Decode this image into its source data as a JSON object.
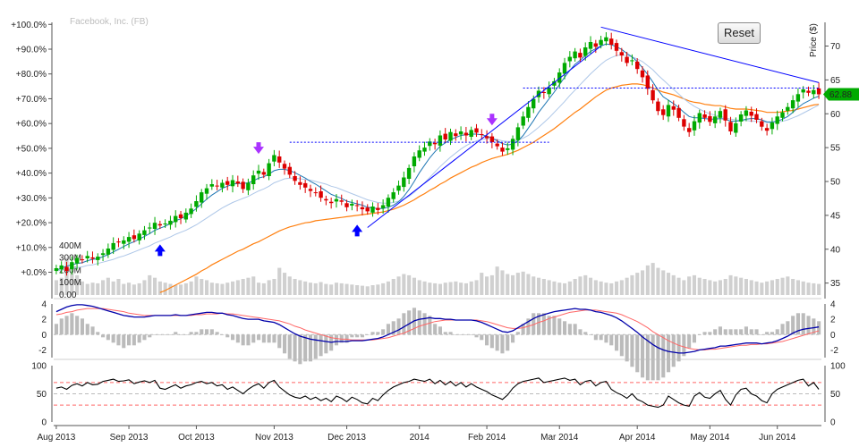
{
  "chart_title": "Facebook, Inc. (FB)",
  "reset_label": "Reset",
  "price_axis_label": "Price ($)",
  "price_tag": "62.88",
  "colors": {
    "up": "#00aa00",
    "down": "#dd0000",
    "sma_fast": "#1f77b4",
    "sma_slow": "#aec7e8",
    "ema_long": "#ff7f0e",
    "macd": "#0000aa",
    "signal": "#ff6666",
    "hist": "#bbbbbb",
    "trend": "#0000ff",
    "arrow_buy": "#0000ff",
    "arrow_sell": "#aa33ff",
    "rsi": "#000000",
    "rsi_band": "#ff6666",
    "price_tag_bg": "#00aa00"
  },
  "chart_data": [
    {
      "type": "candlestick",
      "title": "Facebook, Inc. (FB)",
      "ylabel": "Price ($)",
      "x_ticks": [
        "Aug 2013",
        "Sep 2013",
        "Oct 2013",
        "Nov 2013",
        "Dec 2013",
        "2014",
        "Feb 2014",
        "Mar 2014",
        "Apr 2014",
        "May 2014",
        "Jun 2014"
      ],
      "y_ticks_right": [
        "35",
        "40",
        "45",
        "50",
        "55",
        "60",
        "65",
        "70"
      ],
      "y_ticks_left": [
        "+0.0%",
        "+10.0%",
        "+20.0%",
        "+30.0%",
        "+40.0%",
        "+50.0%",
        "+60.0%",
        "+70.0%",
        "+80.0%",
        "+90.0%",
        "+100.0%"
      ],
      "volume_ticks": [
        "0.00",
        "100M",
        "200M",
        "300M",
        "400M"
      ],
      "ylim": [
        33.5,
        73.5
      ],
      "pct_base": 36.6,
      "last_price": 62.88,
      "closes": [
        37.2,
        37.6,
        36.8,
        38.1,
        38.7,
        38.4,
        39.0,
        38.6,
        38.9,
        39.4,
        40.1,
        40.9,
        41.0,
        41.3,
        41.8,
        41.5,
        42.3,
        42.8,
        43.2,
        43.9,
        43.5,
        43.8,
        44.2,
        44.9,
        44.6,
        45.4,
        46.0,
        47.1,
        48.4,
        49.0,
        49.6,
        49.3,
        49.8,
        49.5,
        50.2,
        49.7,
        48.9,
        49.8,
        50.9,
        51.6,
        51.0,
        52.7,
        53.9,
        52.8,
        51.9,
        51.0,
        50.1,
        49.5,
        49.1,
        48.6,
        48.3,
        47.6,
        47.2,
        46.8,
        47.4,
        47.0,
        46.2,
        46.7,
        46.4,
        45.9,
        45.6,
        46.3,
        45.8,
        46.5,
        47.6,
        48.4,
        49.4,
        50.6,
        52.0,
        53.7,
        54.6,
        55.0,
        55.9,
        55.5,
        56.8,
        56.2,
        57.3,
        56.7,
        57.4,
        56.8,
        57.6,
        57.2,
        56.9,
        56.4,
        55.8,
        55.2,
        54.4,
        54.9,
        56.3,
        58.0,
        59.6,
        61.0,
        62.2,
        63.4,
        63.1,
        63.9,
        64.8,
        66.1,
        67.5,
        68.4,
        69.2,
        68.3,
        69.8,
        70.6,
        69.9,
        70.9,
        71.3,
        70.2,
        69.3,
        68.6,
        67.5,
        67.9,
        66.6,
        65.4,
        63.7,
        62.0,
        60.4,
        59.8,
        61.3,
        60.6,
        59.4,
        58.1,
        57.3,
        58.9,
        60.1,
        59.4,
        58.8,
        59.6,
        60.4,
        59.0,
        57.4,
        58.6,
        59.9,
        60.5,
        59.7,
        59.1,
        58.1,
        57.5,
        58.7,
        59.6,
        60.2,
        61.0,
        62.0,
        62.9,
        63.6,
        63.1,
        63.5,
        62.88
      ],
      "volume": [
        120,
        140,
        300,
        180,
        160,
        110,
        90,
        100,
        95,
        120,
        140,
        110,
        130,
        90,
        100,
        85,
        95,
        120,
        160,
        140,
        110,
        100,
        90,
        80,
        85,
        95,
        110,
        150,
        130,
        120,
        100,
        95,
        90,
        100,
        110,
        120,
        130,
        140,
        150,
        100,
        95,
        120,
        130,
        220,
        180,
        150,
        130,
        120,
        110,
        100,
        95,
        105,
        90,
        85,
        100,
        95,
        90,
        85,
        80,
        75,
        70,
        80,
        85,
        95,
        110,
        130,
        150,
        170,
        160,
        140,
        120,
        110,
        100,
        95,
        90,
        100,
        105,
        110,
        100,
        95,
        110,
        120,
        180,
        150,
        160,
        230,
        200,
        170,
        160,
        180,
        190,
        170,
        150,
        140,
        130,
        120,
        110,
        100,
        95,
        110,
        130,
        150,
        160,
        140,
        120,
        110,
        100,
        95,
        110,
        120,
        140,
        160,
        180,
        200,
        240,
        260,
        220,
        200,
        180,
        160,
        140,
        120,
        150,
        160,
        140,
        130,
        120,
        110,
        120,
        130,
        160,
        150,
        140,
        130,
        120,
        110,
        100,
        110,
        120,
        130,
        140,
        150,
        130,
        120,
        110,
        100,
        95,
        90
      ],
      "sma_fast": [
        36.9,
        37.2,
        37.5,
        37.7,
        37.9,
        38.0,
        38.3,
        38.5,
        38.6,
        38.9,
        39.2,
        39.6,
        40.0,
        40.4,
        40.8,
        41.1,
        41.5,
        41.9,
        42.3,
        42.8,
        43.1,
        43.4,
        43.8,
        44.2,
        44.5,
        44.9,
        45.4,
        46.0,
        46.7,
        47.4,
        48.0,
        48.5,
        49.0,
        49.3,
        49.6,
        49.7,
        49.7,
        49.8,
        50.1,
        50.5,
        50.7,
        51.1,
        51.6,
        51.8,
        51.8,
        51.6,
        51.3,
        50.9,
        50.5,
        50.0,
        49.6,
        49.1,
        48.6,
        48.1,
        47.8,
        47.5,
        47.1,
        46.9,
        46.7,
        46.5,
        46.2,
        46.1,
        46.0,
        46.0,
        46.2,
        46.5,
        47.0,
        47.8,
        48.8,
        50.0,
        51.3,
        52.4,
        53.5,
        54.4,
        55.2,
        55.7,
        56.2,
        56.5,
        56.8,
        56.9,
        57.0,
        57.0,
        56.9,
        56.7,
        56.4,
        56.0,
        55.6,
        55.4,
        55.5,
        56.0,
        56.8,
        57.9,
        59.0,
        60.2,
        61.2,
        62.2,
        63.2,
        64.3,
        65.4,
        66.4,
        67.3,
        67.9,
        68.6,
        69.2,
        69.6,
        70.0,
        70.3,
        70.2,
        69.9,
        69.5,
        68.9,
        68.4,
        67.7,
        66.8,
        65.8,
        64.7,
        63.5,
        62.5,
        62.0,
        61.5,
        60.9,
        60.2,
        59.6,
        59.4,
        59.4,
        59.3,
        59.2,
        59.2,
        59.3,
        59.2,
        58.9,
        58.9,
        59.0,
        59.2,
        59.3,
        59.3,
        59.1,
        58.8,
        58.8,
        58.9,
        59.2,
        59.6,
        60.2,
        60.9,
        61.5,
        61.9,
        62.3,
        62.6
      ],
      "sma_slow": [
        36.8,
        36.9,
        37.0,
        37.2,
        37.3,
        37.4,
        37.6,
        37.7,
        37.9,
        38.1,
        38.3,
        38.5,
        38.8,
        39.0,
        39.3,
        39.6,
        39.9,
        40.2,
        40.5,
        40.9,
        41.2,
        41.5,
        41.8,
        42.2,
        42.5,
        42.8,
        43.2,
        43.6,
        44.1,
        44.6,
        45.1,
        45.6,
        46.1,
        46.5,
        46.9,
        47.2,
        47.5,
        47.8,
        48.2,
        48.6,
        48.9,
        49.3,
        49.8,
        50.1,
        50.4,
        50.5,
        50.5,
        50.4,
        50.3,
        50.2,
        50.0,
        49.8,
        49.6,
        49.3,
        49.1,
        48.8,
        48.5,
        48.2,
        47.9,
        47.6,
        47.3,
        47.1,
        46.9,
        46.8,
        46.8,
        46.9,
        47.1,
        47.4,
        47.8,
        48.4,
        49.1,
        49.8,
        50.6,
        51.4,
        52.2,
        52.9,
        53.6,
        54.2,
        54.8,
        55.3,
        55.7,
        56.0,
        56.2,
        56.3,
        56.3,
        56.2,
        56.0,
        55.9,
        55.9,
        56.1,
        56.4,
        56.8,
        57.4,
        58.0,
        58.7,
        59.4,
        60.2,
        61.0,
        61.8,
        62.7,
        63.5,
        64.3,
        65.1,
        65.9,
        66.6,
        67.3,
        67.9,
        68.3,
        68.6,
        68.7,
        68.6,
        68.4,
        68.1,
        67.7,
        67.1,
        66.5,
        65.7,
        65.0,
        64.3,
        63.6,
        62.9,
        62.2,
        61.6,
        61.1,
        60.7,
        60.3,
        60.0,
        59.8,
        59.6,
        59.4,
        59.2,
        59.1,
        59.0,
        59.0,
        58.9,
        58.9,
        58.8,
        58.7,
        58.7,
        58.8,
        58.9,
        59.1,
        59.4,
        59.7,
        60.1,
        60.5,
        60.9,
        61.3
      ],
      "ema_long": [
        null,
        null,
        null,
        null,
        null,
        null,
        null,
        null,
        null,
        null,
        null,
        null,
        null,
        null,
        null,
        null,
        null,
        null,
        null,
        null,
        33.6,
        33.9,
        34.3,
        34.7,
        35.1,
        35.5,
        35.9,
        36.3,
        36.8,
        37.2,
        37.7,
        38.1,
        38.5,
        38.9,
        39.3,
        39.7,
        40.0,
        40.4,
        40.8,
        41.1,
        41.5,
        41.9,
        42.3,
        42.7,
        43.0,
        43.3,
        43.5,
        43.7,
        43.9,
        44.0,
        44.2,
        44.3,
        44.4,
        44.5,
        44.6,
        44.7,
        44.8,
        44.9,
        45.0,
        45.1,
        45.2,
        45.3,
        45.4,
        45.5,
        45.7,
        45.9,
        46.2,
        46.5,
        46.9,
        47.3,
        47.8,
        48.2,
        48.7,
        49.1,
        49.6,
        50.0,
        50.5,
        50.9,
        51.3,
        51.7,
        52.1,
        52.4,
        52.8,
        53.1,
        53.4,
        53.6,
        53.8,
        54.0,
        54.3,
        54.6,
        55.0,
        55.4,
        55.8,
        56.3,
        56.8,
        57.3,
        57.8,
        58.4,
        59.0,
        59.6,
        60.2,
        60.7,
        61.3,
        61.9,
        62.5,
        63.0,
        63.5,
        63.8,
        64.0,
        64.2,
        64.3,
        64.4,
        64.4,
        64.3,
        64.1,
        63.8,
        63.5,
        63.2,
        63.0,
        62.8,
        62.5,
        62.2,
        61.9,
        61.7,
        61.6,
        61.4,
        61.3,
        61.2,
        61.2,
        61.0,
        60.8,
        60.7,
        60.7,
        60.7,
        60.6,
        60.5,
        60.4,
        60.2,
        60.2,
        60.2,
        60.3,
        60.4,
        60.5,
        60.7,
        60.9,
        61.1,
        61.3,
        61.4
      ],
      "macd": [
        3.0,
        3.3,
        3.6,
        3.8,
        3.9,
        3.9,
        3.8,
        3.7,
        3.5,
        3.3,
        3.1,
        2.9,
        2.7,
        2.5,
        2.4,
        2.3,
        2.3,
        2.3,
        2.4,
        2.5,
        2.5,
        2.5,
        2.5,
        2.6,
        2.5,
        2.5,
        2.6,
        2.7,
        2.8,
        2.9,
        2.9,
        2.8,
        2.8,
        2.6,
        2.5,
        2.3,
        2.1,
        2.0,
        2.0,
        2.0,
        1.8,
        1.7,
        1.6,
        1.3,
        0.9,
        0.5,
        0.1,
        -0.2,
        -0.4,
        -0.6,
        -0.7,
        -0.8,
        -0.9,
        -1.0,
        -0.9,
        -0.9,
        -0.9,
        -0.8,
        -0.8,
        -0.8,
        -0.7,
        -0.6,
        -0.5,
        -0.3,
        0.0,
        0.3,
        0.6,
        1.0,
        1.4,
        1.8,
        2.0,
        2.1,
        2.2,
        2.1,
        2.1,
        2.0,
        2.0,
        1.9,
        1.9,
        1.9,
        1.9,
        1.8,
        1.6,
        1.3,
        1.0,
        0.7,
        0.4,
        0.3,
        0.5,
        0.9,
        1.3,
        1.7,
        2.1,
        2.4,
        2.6,
        2.8,
        3.0,
        3.1,
        3.2,
        3.3,
        3.4,
        3.3,
        3.3,
        3.2,
        3.0,
        2.9,
        2.7,
        2.5,
        2.2,
        1.8,
        1.3,
        0.8,
        0.3,
        -0.3,
        -0.8,
        -1.3,
        -1.7,
        -2.0,
        -2.2,
        -2.3,
        -2.4,
        -2.4,
        -2.3,
        -2.2,
        -2.0,
        -1.9,
        -1.8,
        -1.7,
        -1.5,
        -1.5,
        -1.4,
        -1.3,
        -1.2,
        -1.1,
        -1.1,
        -1.1,
        -1.2,
        -1.1,
        -1.0,
        -0.8,
        -0.5,
        -0.2,
        0.2,
        0.5,
        0.7,
        0.8,
        0.9,
        1.0
      ],
      "signal": [
        2.6,
        2.7,
        2.9,
        3.0,
        3.2,
        3.3,
        3.4,
        3.4,
        3.4,
        3.4,
        3.3,
        3.2,
        3.1,
        3.0,
        2.8,
        2.7,
        2.6,
        2.5,
        2.5,
        2.5,
        2.5,
        2.5,
        2.5,
        2.5,
        2.5,
        2.5,
        2.5,
        2.6,
        2.6,
        2.7,
        2.7,
        2.7,
        2.8,
        2.7,
        2.7,
        2.6,
        2.5,
        2.4,
        2.3,
        2.2,
        2.1,
        2.0,
        1.9,
        1.8,
        1.6,
        1.4,
        1.1,
        0.9,
        0.6,
        0.4,
        0.2,
        0.0,
        -0.2,
        -0.4,
        -0.5,
        -0.6,
        -0.6,
        -0.7,
        -0.7,
        -0.7,
        -0.7,
        -0.7,
        -0.6,
        -0.5,
        -0.4,
        -0.2,
        0.0,
        0.2,
        0.5,
        0.8,
        1.1,
        1.3,
        1.5,
        1.7,
        1.8,
        1.9,
        1.9,
        1.9,
        1.9,
        1.9,
        1.9,
        1.9,
        1.8,
        1.7,
        1.5,
        1.3,
        1.1,
        0.9,
        0.8,
        0.8,
        0.9,
        1.1,
        1.3,
        1.6,
        1.8,
        2.1,
        2.3,
        2.5,
        2.7,
        2.9,
        3.0,
        3.1,
        3.2,
        3.2,
        3.2,
        3.1,
        3.0,
        2.9,
        2.8,
        2.6,
        2.3,
        2.0,
        1.7,
        1.3,
        0.9,
        0.4,
        0.0,
        -0.4,
        -0.8,
        -1.1,
        -1.4,
        -1.6,
        -1.8,
        -1.9,
        -2.0,
        -2.0,
        -1.9,
        -1.9,
        -1.8,
        -1.7,
        -1.6,
        -1.5,
        -1.4,
        -1.4,
        -1.3,
        -1.3,
        -1.2,
        -1.2,
        -1.1,
        -1.0,
        -0.9,
        -0.7,
        -0.5,
        -0.3,
        -0.1,
        0.1,
        0.3,
        0.5
      ],
      "rsi": [
        60,
        62,
        58,
        65,
        68,
        64,
        70,
        66,
        67,
        72,
        74,
        76,
        72,
        73,
        75,
        68,
        71,
        73,
        70,
        74,
        60,
        58,
        62,
        66,
        60,
        64,
        66,
        70,
        72,
        68,
        70,
        64,
        66,
        58,
        62,
        56,
        50,
        58,
        64,
        68,
        60,
        70,
        74,
        62,
        55,
        48,
        44,
        42,
        46,
        40,
        44,
        38,
        42,
        36,
        46,
        42,
        36,
        44,
        40,
        34,
        32,
        42,
        38,
        48,
        56,
        62,
        66,
        70,
        72,
        76,
        74,
        72,
        76,
        68,
        74,
        66,
        72,
        64,
        70,
        62,
        68,
        62,
        58,
        54,
        48,
        44,
        40,
        48,
        60,
        68,
        72,
        74,
        76,
        78,
        70,
        72,
        74,
        76,
        78,
        74,
        76,
        66,
        72,
        74,
        64,
        70,
        72,
        58,
        52,
        48,
        42,
        50,
        40,
        36,
        30,
        28,
        26,
        30,
        46,
        40,
        34,
        30,
        28,
        46,
        52,
        44,
        42,
        50,
        56,
        40,
        30,
        48,
        58,
        60,
        50,
        46,
        38,
        34,
        50,
        58,
        62,
        66,
        70,
        74,
        76,
        64,
        70,
        58
      ],
      "trend_lines": [
        {
          "kind": "solid",
          "from": [
            60,
            43.2
          ],
          "to": [
            105,
            70.0
          ]
        },
        {
          "kind": "solid",
          "from": [
            105,
            72.8
          ],
          "to": [
            147,
            64.6
          ]
        },
        {
          "kind": "dotted",
          "from": [
            45,
            55.8
          ],
          "to": [
            95,
            55.8
          ]
        },
        {
          "kind": "dotted",
          "from": [
            90,
            63.8
          ],
          "to": [
            147,
            63.8
          ]
        }
      ],
      "arrows": [
        {
          "kind": "buy",
          "i": 20
        },
        {
          "kind": "sell",
          "i": 39
        },
        {
          "kind": "buy",
          "i": 58
        },
        {
          "kind": "sell",
          "i": 84
        }
      ],
      "macd_ticks": [
        "4",
        "2",
        "0",
        "-2"
      ],
      "macd_ylim": [
        -3,
        4
      ],
      "rsi_ticks": [
        "100",
        "50",
        "0"
      ],
      "rsi_ylim": [
        0,
        100
      ],
      "rsi_bands": [
        70,
        30
      ]
    }
  ]
}
